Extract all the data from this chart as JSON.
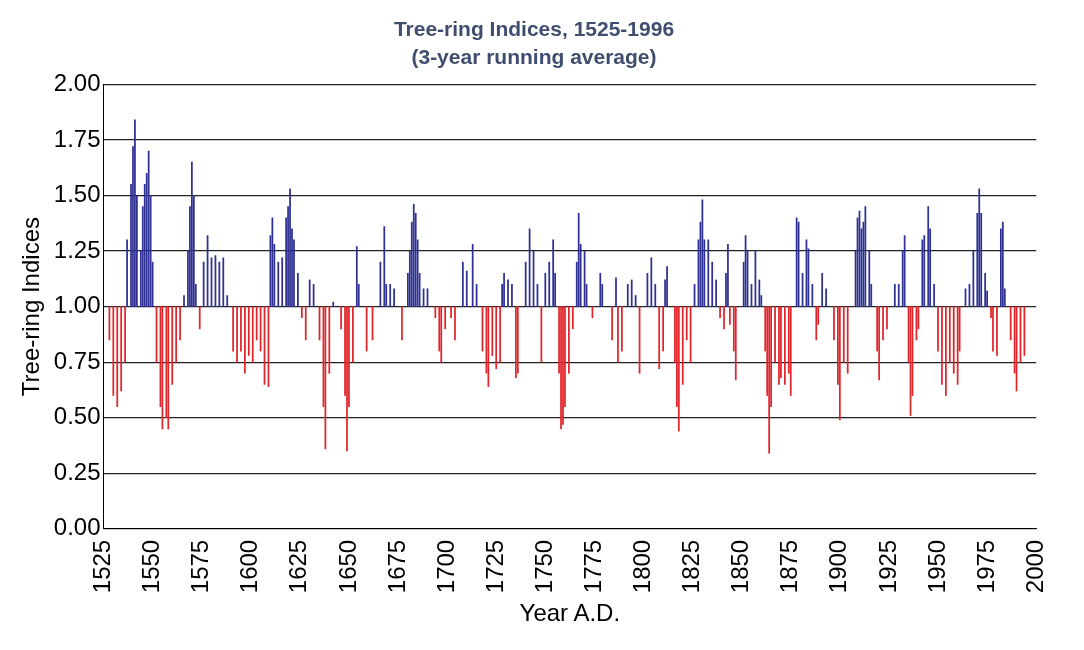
{
  "chart_data": {
    "type": "bar",
    "title": "Tree-ring Indices, 1525-1996",
    "subtitle": "(3-year running average)",
    "xlabel": "Year A.D.",
    "ylabel": "Tree-ring Indices",
    "xlim": [
      1525,
      2000
    ],
    "xticks": [
      1525,
      1550,
      1575,
      1600,
      1625,
      1650,
      1675,
      1700,
      1725,
      1750,
      1775,
      1800,
      1825,
      1850,
      1875,
      1900,
      1925,
      1950,
      1975,
      2000
    ],
    "ylim": [
      0,
      2
    ],
    "yticks": [
      {
        "value": 0,
        "label": "0.00"
      },
      {
        "value": 0.25,
        "label": "0.25"
      },
      {
        "value": 0.5,
        "label": "0.50"
      },
      {
        "value": 0.75,
        "label": "0.75"
      },
      {
        "value": 1,
        "label": "1.00"
      },
      {
        "value": 1.25,
        "label": "1.25"
      },
      {
        "value": 1.5,
        "label": "1.50"
      },
      {
        "value": 1.75,
        "label": "1.75"
      },
      {
        "value": 2,
        "label": "2.00"
      }
    ],
    "grid": "y",
    "legend": false,
    "series": [
      {
        "color": "#2e3192",
        "x": [
          1537,
          1539,
          1540,
          1541,
          1542,
          1544,
          1545,
          1546,
          1547,
          1548,
          1549,
          1550,
          1566,
          1568,
          1569,
          1570,
          1571,
          1572,
          1576,
          1578,
          1580,
          1582,
          1584,
          1586,
          1588,
          1610,
          1611,
          1612,
          1614,
          1616,
          1618,
          1619,
          1620,
          1621,
          1622,
          1624,
          1630,
          1632,
          1642,
          1654,
          1655,
          1666,
          1668,
          1669,
          1671,
          1673,
          1680,
          1681,
          1682,
          1683,
          1684,
          1685,
          1686,
          1688,
          1690,
          1708,
          1710,
          1713,
          1715,
          1728,
          1729,
          1731,
          1733,
          1740,
          1742,
          1744,
          1746,
          1750,
          1752,
          1754,
          1755,
          1766,
          1767,
          1768,
          1770,
          1771,
          1778,
          1779,
          1786,
          1792,
          1794,
          1796,
          1802,
          1804,
          1806,
          1811,
          1812,
          1826,
          1828,
          1829,
          1830,
          1831,
          1833,
          1835,
          1837,
          1842,
          1843,
          1851,
          1852,
          1853,
          1855,
          1857,
          1859,
          1860,
          1878,
          1879,
          1881,
          1883,
          1884,
          1886,
          1891,
          1893,
          1908,
          1909,
          1910,
          1911,
          1912,
          1913,
          1915,
          1916,
          1928,
          1930,
          1932,
          1933,
          1942,
          1943,
          1945,
          1946,
          1948,
          1964,
          1966,
          1968,
          1970,
          1971,
          1972,
          1974,
          1975,
          1982,
          1983,
          1984
        ],
        "base": [
          1,
          1,
          1,
          1,
          1,
          1,
          1,
          1,
          1,
          1,
          1,
          1,
          1,
          1,
          1,
          1,
          1,
          1,
          1,
          1,
          1,
          1,
          1,
          1,
          1,
          1,
          1,
          1,
          1,
          1,
          1,
          1,
          1,
          1,
          1,
          1,
          1,
          1,
          1,
          1,
          1,
          1,
          1,
          1,
          1,
          1,
          1,
          1,
          1,
          1,
          1,
          1,
          1,
          1,
          1,
          1,
          1,
          1,
          1,
          1,
          1,
          1,
          1,
          1,
          1,
          1,
          1,
          1,
          1,
          1,
          1,
          1,
          1,
          1,
          1,
          1,
          1,
          1,
          1,
          1,
          1,
          1,
          1,
          1,
          1,
          1,
          1,
          1,
          1,
          1,
          1,
          1,
          1,
          1,
          1,
          1,
          1,
          1,
          1,
          1,
          1,
          1,
          1,
          1,
          1,
          1,
          1,
          1,
          1,
          1,
          1,
          1,
          1,
          1,
          1,
          1,
          1,
          1,
          1,
          1,
          1,
          1,
          1,
          1,
          1,
          1,
          1,
          1,
          1,
          1,
          1,
          1,
          1,
          1,
          1,
          1,
          1,
          1,
          1,
          1
        ],
        "values": [
          0.3,
          0.55,
          0.72,
          0.84,
          0.5,
          0.25,
          0.45,
          0.55,
          0.6,
          0.7,
          0.5,
          0.2,
          0.05,
          0.25,
          0.45,
          0.65,
          0.5,
          0.1,
          0.2,
          0.32,
          0.22,
          0.23,
          0.2,
          0.22,
          0.05,
          0.32,
          0.4,
          0.28,
          0.2,
          0.22,
          0.4,
          0.45,
          0.53,
          0.35,
          0.3,
          0.15,
          0.12,
          0.1,
          0.02,
          0.27,
          0.1,
          0.2,
          0.36,
          0.1,
          0.1,
          0.08,
          0.15,
          0.25,
          0.38,
          0.46,
          0.42,
          0.3,
          0.15,
          0.08,
          0.08,
          0.2,
          0.16,
          0.28,
          0.1,
          0.1,
          0.15,
          0.12,
          0.1,
          0.2,
          0.35,
          0.25,
          0.1,
          0.15,
          0.2,
          0.3,
          0.15,
          0.2,
          0.42,
          0.28,
          0.25,
          0.1,
          0.15,
          0.1,
          0.13,
          0.1,
          0.12,
          0.05,
          0.15,
          0.22,
          0.1,
          0.12,
          0.18,
          0.1,
          0.3,
          0.38,
          0.48,
          0.3,
          0.3,
          0.2,
          0.12,
          0.15,
          0.28,
          0.2,
          0.32,
          0.25,
          0.1,
          0.25,
          0.12,
          0.05,
          0.4,
          0.38,
          0.15,
          0.3,
          0.26,
          0.1,
          0.15,
          0.08,
          0.25,
          0.4,
          0.43,
          0.35,
          0.38,
          0.45,
          0.25,
          0.1,
          0.1,
          0.1,
          0.25,
          0.32,
          0.3,
          0.32,
          0.45,
          0.35,
          0.1,
          0.08,
          0.1,
          0.25,
          0.42,
          0.53,
          0.42,
          0.15,
          0.07,
          0.35,
          0.38,
          0.08
        ]
      },
      {
        "color": "#e0262b",
        "x": [
          1528,
          1530,
          1532,
          1534,
          1536,
          1552,
          1554,
          1555,
          1557,
          1558,
          1560,
          1562,
          1564,
          1574,
          1591,
          1593,
          1595,
          1597,
          1599,
          1601,
          1603,
          1605,
          1607,
          1609,
          1626,
          1628,
          1635,
          1637,
          1638,
          1640,
          1646,
          1648,
          1649,
          1650,
          1652,
          1659,
          1662,
          1677,
          1694,
          1696,
          1697,
          1699,
          1702,
          1704,
          1718,
          1720,
          1721,
          1723,
          1725,
          1727,
          1735,
          1736,
          1748,
          1757,
          1758,
          1759,
          1760,
          1762,
          1764,
          1774,
          1784,
          1787,
          1789,
          1798,
          1808,
          1810,
          1816,
          1817,
          1818,
          1820,
          1822,
          1824,
          1839,
          1841,
          1844,
          1846,
          1847,
          1862,
          1863,
          1864,
          1865,
          1867,
          1869,
          1870,
          1872,
          1874,
          1875,
          1888,
          1889,
          1897,
          1899,
          1900,
          1902,
          1904,
          1919,
          1920,
          1922,
          1924,
          1935,
          1936,
          1937,
          1939,
          1940,
          1950,
          1952,
          1954,
          1956,
          1958,
          1960,
          1961,
          1977,
          1978,
          1980,
          1987,
          1989,
          1990,
          1992,
          1994
        ],
        "base": [
          1,
          1,
          1,
          1,
          1,
          1,
          1,
          1,
          1,
          1,
          1,
          1,
          1,
          1,
          1,
          1,
          1,
          1,
          1,
          1,
          1,
          1,
          1,
          1,
          1,
          1,
          1,
          1,
          1,
          1,
          1,
          1,
          1,
          1,
          1,
          1,
          1,
          1,
          1,
          1,
          1,
          1,
          1,
          1,
          1,
          1,
          1,
          1,
          1,
          1,
          1,
          1,
          1,
          1,
          1,
          1,
          1,
          1,
          1,
          1,
          1,
          1,
          1,
          1,
          1,
          1,
          1,
          1,
          1,
          1,
          1,
          1,
          1,
          1,
          1,
          1,
          1,
          1,
          1,
          1,
          1,
          1,
          1,
          1,
          1,
          1,
          1,
          1,
          1,
          1,
          1,
          1,
          1,
          1,
          1,
          1,
          1,
          1,
          1,
          1,
          1,
          1,
          1,
          1,
          1,
          1,
          1,
          1,
          1,
          1,
          1,
          1,
          1,
          1,
          1,
          1,
          1,
          1
        ],
        "values": [
          -0.15,
          -0.4,
          -0.45,
          -0.38,
          -0.25,
          -0.25,
          -0.45,
          -0.55,
          -0.5,
          -0.55,
          -0.35,
          -0.25,
          -0.15,
          -0.1,
          -0.2,
          -0.25,
          -0.2,
          -0.3,
          -0.22,
          -0.25,
          -0.15,
          -0.2,
          -0.35,
          -0.36,
          -0.05,
          -0.15,
          -0.15,
          -0.45,
          -0.64,
          -0.3,
          -0.1,
          -0.4,
          -0.65,
          -0.45,
          -0.25,
          -0.2,
          -0.15,
          -0.15,
          -0.05,
          -0.2,
          -0.25,
          -0.1,
          -0.05,
          -0.15,
          -0.2,
          -0.3,
          -0.36,
          -0.22,
          -0.28,
          -0.25,
          -0.32,
          -0.3,
          -0.25,
          -0.3,
          -0.55,
          -0.53,
          -0.45,
          -0.3,
          -0.1,
          -0.05,
          -0.15,
          -0.25,
          -0.2,
          -0.3,
          -0.28,
          -0.2,
          -0.25,
          -0.45,
          -0.56,
          -0.35,
          -0.15,
          -0.25,
          -0.05,
          -0.1,
          -0.08,
          -0.2,
          -0.33,
          -0.2,
          -0.4,
          -0.66,
          -0.45,
          -0.25,
          -0.35,
          -0.32,
          -0.35,
          -0.3,
          -0.4,
          -0.15,
          -0.08,
          -0.15,
          -0.35,
          -0.51,
          -0.25,
          -0.3,
          -0.2,
          -0.33,
          -0.15,
          -0.1,
          -0.25,
          -0.49,
          -0.4,
          -0.15,
          -0.1,
          -0.2,
          -0.35,
          -0.4,
          -0.25,
          -0.3,
          -0.35,
          -0.2,
          -0.05,
          -0.2,
          -0.22,
          -0.15,
          -0.3,
          -0.38,
          -0.25,
          -0.22
        ]
      }
    ]
  }
}
